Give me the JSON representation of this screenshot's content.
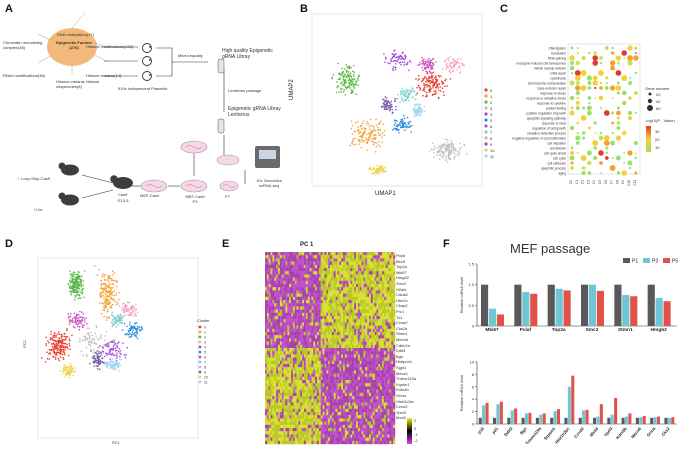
{
  "panels": {
    "A": "A",
    "B": "B",
    "C": "C",
    "D": "D",
    "E": "E",
    "F": "F"
  },
  "panelA": {
    "center_label": "Epigenetic Factors (276)",
    "categories": [
      "DNA methylation(17)",
      "Chromatin remodeling complex(38)",
      "Histone modifications(102)",
      "RNAs modifications(36)",
      "Histone readers(14)",
      "Histone variants Histone chaperones(8)"
    ],
    "mixed": "Mixed equally",
    "library": "High quality Epigenetic gRNA Libray",
    "plasmids": "510x Independent Plasmids",
    "lentivirus": "Lentivirus package",
    "lenti_lib": "Epigenetic gRNA Libray Lentivirus",
    "mouse1": "♂ Loxp-Stop-Cas9",
    "mouse2": "♀Cre",
    "cas9": "Cas9",
    "e135": "E13.5",
    "mef": "MEF-Cas9",
    "mef_p3": "MEF-Cas9 P3",
    "p7": "P7",
    "genomics": "10x Genomics scRNA-seq"
  },
  "panelB": {
    "xlabel": "UMAP1",
    "ylabel": "UMAP2",
    "clusters": [
      {
        "id": "0",
        "color": "#e8402e"
      },
      {
        "id": "1",
        "color": "#f3a23a"
      },
      {
        "id": "2",
        "color": "#5cb848"
      },
      {
        "id": "3",
        "color": "#bfbfbf"
      },
      {
        "id": "4",
        "color": "#a04bd6"
      },
      {
        "id": "5",
        "color": "#2b8fd9"
      },
      {
        "id": "6",
        "color": "#c94fb6"
      },
      {
        "id": "7",
        "color": "#7fd1cf"
      },
      {
        "id": "8",
        "color": "#f6a1c4"
      },
      {
        "id": "9",
        "color": "#7b5ea7"
      },
      {
        "id": "10",
        "color": "#f2d14b"
      },
      {
        "id": "11",
        "color": "#9fd7ef"
      }
    ]
  },
  "panelC": {
    "terms": [
      "DNA ligation",
      "translation",
      "RNA splicing",
      "oncogene-induced cell senescence",
      "mitotic nuclear division",
      "DNA repair",
      "cytokinesis",
      "chromosome condensation",
      "base-excision repair",
      "response to stress",
      "response to oxidative stress",
      "response to cytokine",
      "protein folding",
      "positive regulation of growth",
      "apoptotic signaling pathway",
      "response to virus",
      "regulation of cell growth",
      "oxidation-reduction process",
      "negative regulation of cell proliferation",
      "cell migration",
      "cell division",
      "cell cycle arrest",
      "cell cycle",
      "cell adhesion",
      "apoptotic process",
      "aging"
    ],
    "clusters": [
      "C0",
      "C1",
      "C2",
      "C3",
      "C4",
      "C5",
      "C6",
      "C7",
      "C8",
      "C9",
      "C10",
      "C11"
    ],
    "legend_size_title": "Gene number",
    "sizes": [
      "20",
      "40",
      "60"
    ],
    "legend_color_title": "-log10(P - Value)",
    "color_ticks": [
      "10",
      "20",
      "30"
    ]
  },
  "panelD": {
    "xlabel": "PC1",
    "ylabel": "PC2",
    "legend_title": "Cluster",
    "clusters": [
      "0",
      "1",
      "2",
      "3",
      "4",
      "5",
      "6",
      "7",
      "8",
      "9",
      "10",
      "11"
    ]
  },
  "panelE": {
    "title": "PC 1",
    "genes": [
      "Pclaf",
      "Birc5",
      "Top2a",
      "Mki67",
      "Hmgb2",
      "Smc2",
      "H2afz",
      "Cdca8",
      "Ube2c",
      "Ckap2",
      "Prc1",
      "Tk1",
      "Ccna2",
      "Cks1b",
      "Stmn1",
      "Meox6",
      "Cdkn2a",
      "Ddit3",
      "Bgn",
      "Hsbpnn1",
      "Sgpl1",
      "Meox1",
      "Tmem119a",
      "Sqstm1",
      "Kdm4b",
      "Grina",
      "Hist1h2bc",
      "Ccnd2",
      "Ypel3",
      "Mxd4"
    ],
    "legend_ticks": [
      "2",
      "0",
      "-1",
      "-2"
    ]
  },
  "panelF": {
    "title": "MEF passage",
    "legend": [
      {
        "name": "P1",
        "color": "#595959"
      },
      {
        "name": "P3",
        "color": "#6ec6d6"
      },
      {
        "name": "P5",
        "color": "#e0534a"
      }
    ],
    "top": {
      "ylabel": "Relative mRNA level",
      "categories": [
        "Mki67",
        "Pclaf",
        "Top2a",
        "Smc2",
        "Stmn1",
        "Hmgb2"
      ],
      "series": [
        [
          1,
          1,
          1,
          1,
          1,
          1
        ],
        [
          0.42,
          0.82,
          0.9,
          1.0,
          0.75,
          0.68
        ],
        [
          0.28,
          0.78,
          0.86,
          0.85,
          0.72,
          0.6
        ]
      ],
      "ylim": [
        0,
        1.5
      ],
      "yticks": [
        "1.5",
        "1.0",
        "0.5",
        "0"
      ]
    },
    "bottom": {
      "ylabel": "Relative mRNA level",
      "categories": [
        "p16",
        "p21",
        "Ddit3",
        "Bgn",
        "Tmem119a",
        "Sqstm1",
        "Hist1h2bc",
        "Ccnd2",
        "Mxd4",
        "Ypel3",
        "Kdm5b",
        "Meox6",
        "Grina",
        "Cks2"
      ],
      "series": [
        [
          1,
          1,
          1,
          1,
          1,
          1,
          1,
          1,
          1,
          1,
          1,
          1,
          1,
          1
        ],
        [
          3,
          3.2,
          2.2,
          1.7,
          1.5,
          2.1,
          6,
          2.2,
          1.2,
          1.5,
          1.2,
          1.1,
          1.1,
          1.0
        ],
        [
          3.4,
          3.6,
          2.5,
          1.8,
          1.7,
          2.4,
          7.8,
          2.3,
          3.2,
          4.2,
          1.7,
          1.3,
          1.2,
          1.1
        ]
      ],
      "ylim": [
        0,
        10
      ],
      "yticks": [
        "10",
        "8",
        "6",
        "4",
        "2",
        "0"
      ]
    }
  }
}
